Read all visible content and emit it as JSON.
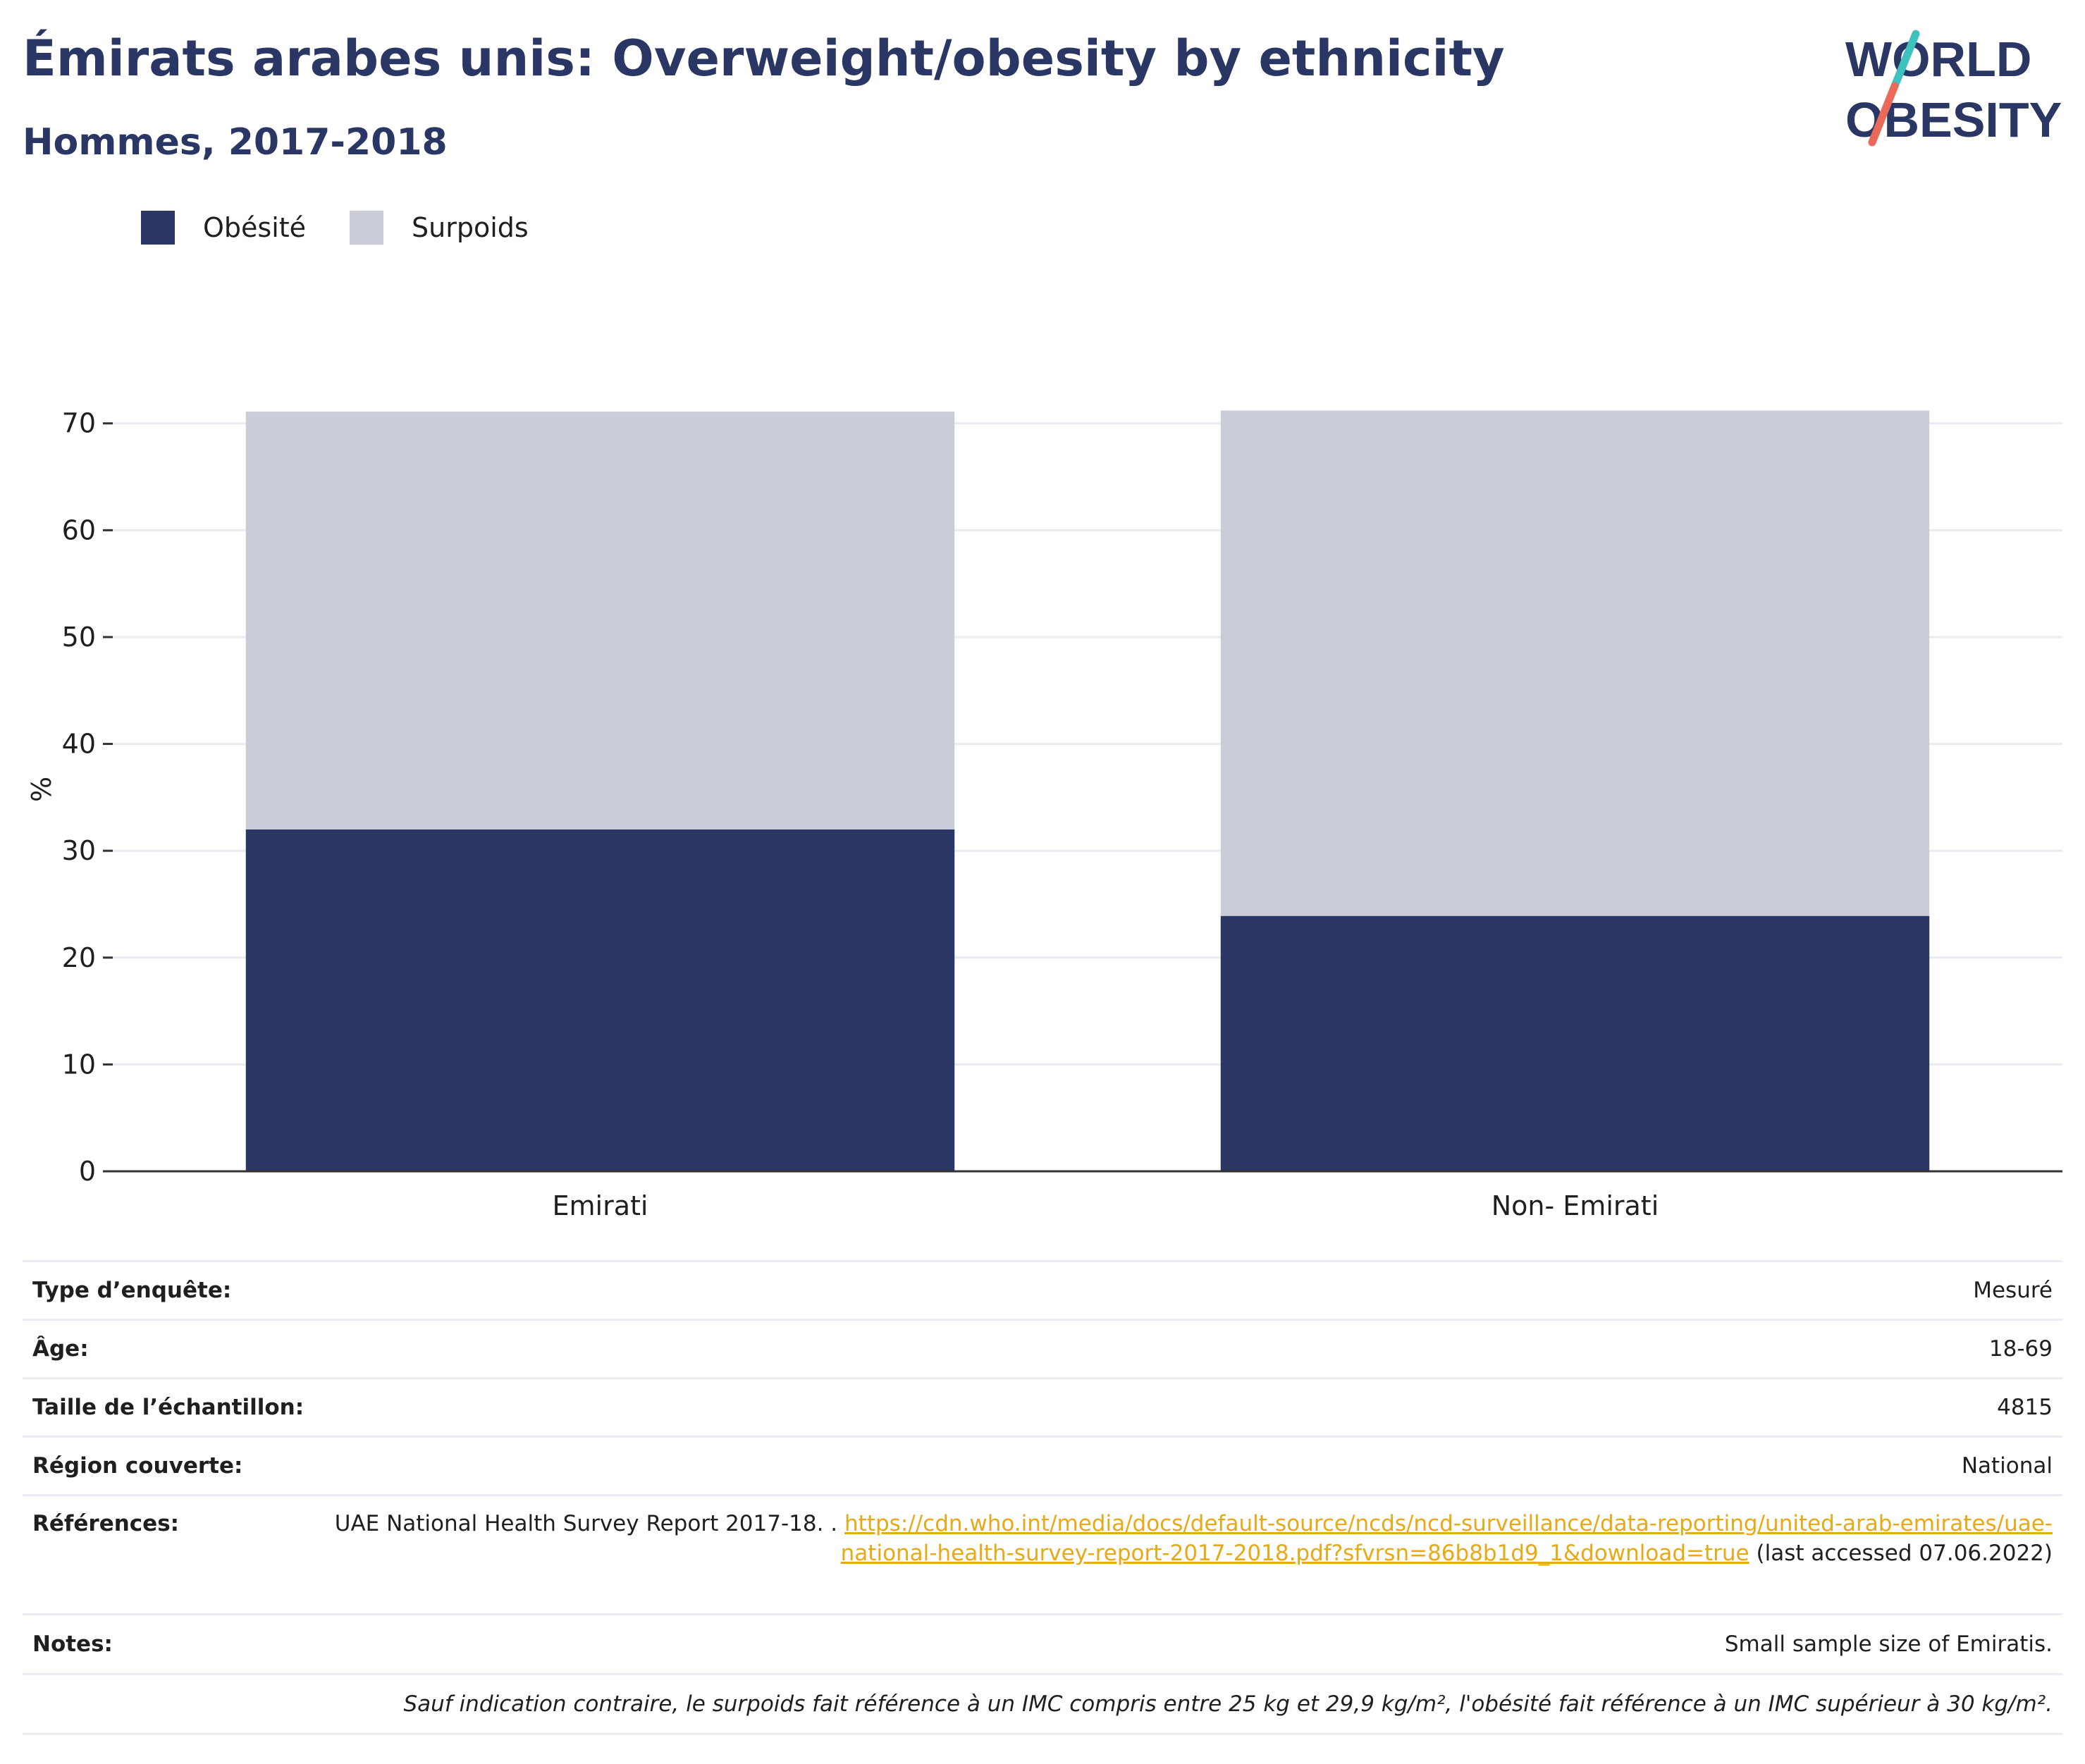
{
  "title": "Émirats arabes unis: Overweight/obesity by ethnicity",
  "subtitle": "Hommes, 2017-2018",
  "logo": {
    "line1": "WORLD",
    "line2": "OBESITY",
    "colors": {
      "text": "#2a3663",
      "slash_top": "#3fc1c0",
      "slash_bottom": "#ea6a5a"
    }
  },
  "legend": [
    {
      "label": "Obésité",
      "color": "#2a3663"
    },
    {
      "label": "Surpoids",
      "color": "#cacdd8"
    }
  ],
  "chart_data": {
    "type": "bar",
    "stacked": true,
    "categories": [
      "Emirati",
      "Non- Emirati"
    ],
    "series": [
      {
        "name": "Obésité",
        "color": "#2a3663",
        "values": [
          32.0,
          23.9
        ]
      },
      {
        "name": "Surpoids",
        "color": "#cacdd8",
        "values": [
          39.1,
          47.3
        ]
      }
    ],
    "ylabel": "%",
    "xlabel": "",
    "ylim": [
      0,
      70
    ],
    "yticks": [
      0,
      10,
      20,
      30,
      40,
      50,
      60,
      70
    ],
    "grid": true,
    "legend_position": "top-left"
  },
  "info": {
    "survey_type": {
      "label": "Type d’enquête:",
      "value": "Mesuré"
    },
    "age": {
      "label": "Âge:",
      "value": "18-69"
    },
    "sample_size": {
      "label": "Taille de l’échantillon:",
      "value": "4815"
    },
    "region": {
      "label": "Région couverte:",
      "value": "National"
    },
    "references": {
      "label": "Références:",
      "text": "UAE National Health Survey Report 2017-18. .",
      "link": "https://cdn.who.int/media/docs/default-source/ncds/ncd-surveillance/data-reporting/united-arab-emirates/uae-national-health-survey-report-2017-2018.pdf?sfvrsn=86b8b1d9_1&download=true",
      "accessed": "(last accessed 07.06.2022)"
    },
    "notes": {
      "label": "Notes:",
      "value": "Small sample size of Emiratis."
    },
    "footnote": "Sauf indication contraire, le surpoids fait référence à un IMC compris entre 25 kg et 29,9 kg/m², l'obésité fait référence à un IMC supérieur à 30 kg/m²."
  }
}
